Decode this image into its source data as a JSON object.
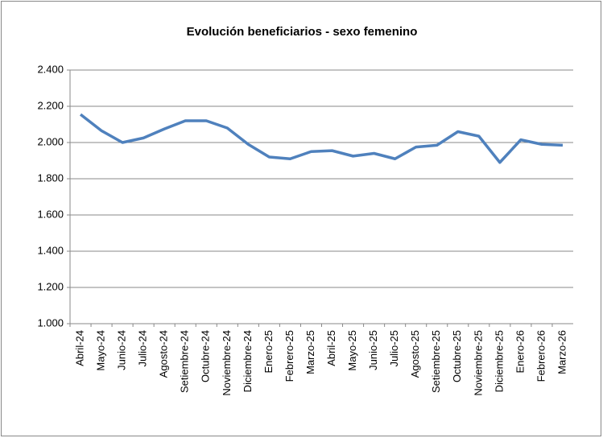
{
  "chart_data": {
    "type": "line",
    "title": "Evolución beneficiarios - sexo femenino",
    "categories": [
      "Abril-24",
      "Mayo-24",
      "Junio-24",
      "Julio-24",
      "Agosto-24",
      "Setiembre-24",
      "Octubre-24",
      "Noviembre-24",
      "Diciembre-24",
      "Enero-25",
      "Febrero-25",
      "Marzo-25",
      "Abril-25",
      "Mayo-25",
      "Junio-25",
      "Julio-25",
      "Agosto-25",
      "Setiembre-25",
      "Octubre-25",
      "Noviembre-25",
      "Diciembre-25",
      "Enero-26",
      "Febrero-26",
      "Marzo-26"
    ],
    "values": [
      2155,
      2065,
      2000,
      2025,
      2075,
      2120,
      2120,
      2080,
      1990,
      1920,
      1910,
      1950,
      1955,
      1925,
      1940,
      1910,
      1975,
      1985,
      2060,
      2035,
      1890,
      2015,
      1990,
      1985
    ],
    "color": "#4f81bd",
    "ylim": [
      1000,
      2400
    ],
    "yticks": [
      {
        "value": 1000,
        "label": "1.000"
      },
      {
        "value": 1200,
        "label": "1.200"
      },
      {
        "value": 1400,
        "label": "1.400"
      },
      {
        "value": 1600,
        "label": "1.600"
      },
      {
        "value": 1800,
        "label": "1.800"
      },
      {
        "value": 2000,
        "label": "2.000"
      },
      {
        "value": 2200,
        "label": "2.200"
      },
      {
        "value": 2400,
        "label": "2.400"
      }
    ],
    "grid": true
  }
}
